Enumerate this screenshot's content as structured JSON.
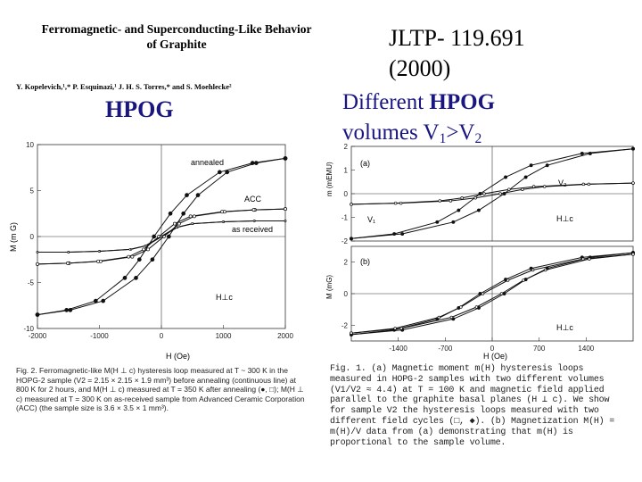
{
  "paper": {
    "title_line1": "Ferromagnetic- and Superconducting-Like Behavior",
    "title_line2": "of Graphite",
    "authors": "Y. Kopelevich,¹,* P. Esquinazi,¹ J. H. S. Torres,* and S. Moehlecke²"
  },
  "labels": {
    "hpog_left": "HPOG",
    "ref_line1": "JLTP- 119.691",
    "ref_line2": "(2000)",
    "heading_prefix": "Different ",
    "heading_hpog": "HPOG",
    "heading_line2_a": "volumes V",
    "heading_sub1": "1",
    "heading_gt": ">V",
    "heading_sub2": "2"
  },
  "figure_left": {
    "ylabel": "M (m G)",
    "xlabel": "H (Oe)",
    "annotations": {
      "annealed": "annealed",
      "acc": "ACC",
      "received": "as received",
      "field": "H⊥c"
    },
    "caption": "Fig. 2. Ferromagnetic-like M(H ⊥ c) hysteresis loop measured at T ~ 300 K in the HOPG-2 sample (V2 = 2.15 × 2.15 × 1.9 mm³) before annealing (continuous line) at 800 K for 2 hours, and M(H ⊥ c) measured at T = 350 K after annealing (●, □); M(H ⊥ c) measured at T = 300 K on as-received sample from Advanced Ceramic Corporation (ACC) (the sample size is 3.6 × 3.5 × 1 mm³)."
  },
  "figure_right": {
    "ylabel_a": "m (mEMU)",
    "ylabel_b": "M (mG)",
    "xlabel": "H (Oe)",
    "panel_a": "(a)",
    "panel_b": "(b)",
    "v1": "V₁",
    "v2": "V₂",
    "field_a": "H⊥c",
    "field_b": "H⊥c",
    "caption": "Fig. 1. (a) Magnetic moment m(H) hysteresis loops measured in HOPG-2 samples with two different volumes (V1/V2 ≈ 4.4) at T = 100 K and magnetic field applied parallel to the graphite basal planes (H ⊥ c). We show for sample V2 the hysteresis loops measured with two different field cycles (□, ◆). (b) Magnetization M(H) = m(H)/V data from (a) demonstrating that m(H) is proportional to the sample volume."
  },
  "chart_data": [
    {
      "type": "line",
      "title": "",
      "xlabel": "H (Oe)",
      "ylabel": "M (m G)",
      "xlim": [
        -2000,
        2000
      ],
      "ylim": [
        -10,
        10
      ],
      "x_ticks": [
        "-2000",
        "-1000",
        "0",
        "1000",
        "2000"
      ],
      "y_ticks": [
        "10",
        "5",
        "0",
        "-5",
        "-10"
      ],
      "x": [
        -2000,
        -1500,
        -1000,
        -500,
        -250,
        0,
        250,
        500,
        1000,
        1500,
        2000
      ],
      "series": [
        {
          "name": "annealed",
          "values": [
            -8.5,
            -8.0,
            -7.0,
            -4.5,
            -2.5,
            0,
            2.5,
            4.5,
            7.0,
            8.0,
            8.5
          ]
        },
        {
          "name": "ACC",
          "values": [
            -3.0,
            -2.9,
            -2.7,
            -2.2,
            -1.4,
            0,
            1.4,
            2.2,
            2.7,
            2.9,
            3.0
          ]
        },
        {
          "name": "as received",
          "values": [
            -1.7,
            -1.7,
            -1.6,
            -1.4,
            -1.0,
            0,
            1.0,
            1.4,
            1.6,
            1.7,
            1.7
          ]
        }
      ]
    },
    {
      "type": "line",
      "title": "(a)",
      "xlabel": "",
      "ylabel": "m (mEMU)",
      "xlim": [
        -2100,
        2100
      ],
      "ylim": [
        -2,
        2
      ],
      "y_ticks": [
        "2",
        "1",
        "0",
        "-1",
        "-2"
      ],
      "x": [
        -2100,
        -1400,
        -700,
        -350,
        0,
        350,
        700,
        1400,
        2100
      ],
      "series": [
        {
          "name": "V₁",
          "values": [
            -1.9,
            -1.7,
            -1.2,
            -0.7,
            0,
            0.7,
            1.2,
            1.7,
            1.9
          ]
        },
        {
          "name": "V₂",
          "values": [
            -0.45,
            -0.4,
            -0.3,
            -0.18,
            0,
            0.18,
            0.3,
            0.4,
            0.45
          ]
        }
      ]
    },
    {
      "type": "line",
      "title": "(b)",
      "xlabel": "H (Oe)",
      "ylabel": "M (mG)",
      "xlim": [
        -2100,
        2100
      ],
      "ylim": [
        -3,
        3
      ],
      "x_ticks": [
        "-1400",
        "-700",
        "0",
        "700",
        "1400"
      ],
      "y_ticks": [
        "2",
        "0",
        "-2"
      ],
      "x": [
        -2100,
        -1400,
        -700,
        -350,
        0,
        350,
        700,
        1400,
        2100
      ],
      "series": [
        {
          "name": "V₁",
          "values": [
            -2.6,
            -2.3,
            -1.6,
            -0.9,
            0,
            0.9,
            1.6,
            2.3,
            2.6
          ]
        },
        {
          "name": "V₂",
          "values": [
            -2.5,
            -2.2,
            -1.5,
            -0.85,
            0,
            0.85,
            1.5,
            2.2,
            2.5
          ]
        }
      ]
    }
  ]
}
